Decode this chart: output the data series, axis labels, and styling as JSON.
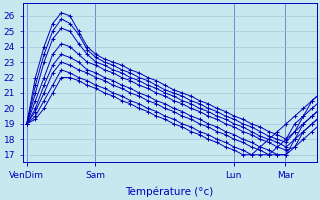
{
  "xlabel": "Température (°c)",
  "ylim": [
    16.5,
    26.8
  ],
  "yticks": [
    17,
    18,
    19,
    20,
    21,
    22,
    23,
    24,
    25,
    26
  ],
  "bg_color": "#c8e8f0",
  "grid_color": "#a0c8d8",
  "line_color": "#0000bb",
  "marker": "+",
  "day_labels": [
    "VenDim",
    "Sam",
    "Lun",
    "Mar"
  ],
  "day_positions": [
    0,
    33,
    100,
    125
  ],
  "xlim": [
    -2,
    140
  ],
  "series": [
    [
      19.0,
      22.0,
      24.0,
      25.5,
      26.2,
      26.0,
      25.0,
      24.0,
      23.5,
      23.2,
      23.0,
      22.8,
      22.5,
      22.3,
      22.0,
      21.8,
      21.5,
      21.2,
      21.0,
      20.8,
      20.5,
      20.3,
      20.0,
      19.8,
      19.5,
      19.3,
      19.0,
      18.8,
      18.5,
      18.3,
      18.0,
      18.5,
      19.0,
      19.5,
      20.0
    ],
    [
      19.0,
      21.5,
      23.5,
      25.0,
      25.8,
      25.5,
      24.8,
      23.8,
      23.3,
      23.0,
      22.8,
      22.5,
      22.3,
      22.0,
      21.8,
      21.5,
      21.2,
      21.0,
      20.8,
      20.5,
      20.3,
      20.0,
      19.8,
      19.5,
      19.3,
      19.0,
      18.8,
      18.5,
      18.2,
      18.0,
      17.8,
      18.5,
      19.5,
      20.5,
      21.0
    ],
    [
      19.0,
      21.0,
      23.0,
      24.5,
      25.2,
      25.0,
      24.2,
      23.5,
      23.0,
      22.8,
      22.5,
      22.3,
      22.0,
      21.8,
      21.5,
      21.3,
      21.0,
      20.8,
      20.5,
      20.3,
      20.0,
      19.8,
      19.5,
      19.3,
      19.0,
      18.8,
      18.5,
      18.2,
      18.0,
      17.8,
      17.5,
      18.0,
      18.5,
      19.0,
      19.5
    ],
    [
      19.0,
      20.5,
      22.0,
      23.5,
      24.2,
      24.0,
      23.5,
      23.0,
      22.8,
      22.5,
      22.3,
      22.0,
      21.8,
      21.5,
      21.3,
      21.0,
      20.8,
      20.5,
      20.3,
      20.0,
      19.8,
      19.5,
      19.3,
      19.0,
      18.8,
      18.5,
      18.3,
      18.0,
      17.8,
      17.5,
      17.3,
      17.5,
      18.0,
      18.5,
      19.0
    ],
    [
      19.0,
      20.0,
      21.5,
      22.8,
      23.5,
      23.3,
      23.0,
      22.5,
      22.3,
      22.0,
      21.8,
      21.5,
      21.3,
      21.0,
      20.8,
      20.5,
      20.3,
      20.0,
      19.8,
      19.5,
      19.3,
      19.0,
      18.8,
      18.5,
      18.3,
      18.0,
      17.8,
      17.5,
      17.3,
      17.0,
      17.0,
      17.5,
      18.5,
      19.0,
      19.5
    ],
    [
      19.0,
      19.8,
      21.0,
      22.3,
      23.0,
      22.8,
      22.5,
      22.3,
      22.0,
      21.8,
      21.5,
      21.3,
      21.0,
      20.8,
      20.5,
      20.3,
      20.0,
      19.8,
      19.5,
      19.3,
      19.0,
      18.8,
      18.5,
      18.3,
      18.0,
      17.8,
      17.5,
      17.3,
      17.0,
      17.0,
      17.0,
      18.0,
      19.0,
      19.5,
      20.0
    ],
    [
      19.0,
      19.5,
      20.5,
      21.5,
      22.5,
      22.3,
      22.0,
      21.8,
      21.5,
      21.3,
      21.0,
      20.8,
      20.5,
      20.3,
      20.0,
      19.8,
      19.5,
      19.3,
      19.0,
      18.8,
      18.5,
      18.3,
      18.0,
      17.8,
      17.5,
      17.3,
      17.0,
      17.0,
      17.0,
      17.5,
      18.0,
      19.0,
      19.5,
      20.0,
      20.5
    ],
    [
      19.0,
      19.3,
      20.0,
      21.0,
      22.0,
      22.0,
      21.8,
      21.5,
      21.3,
      21.0,
      20.8,
      20.5,
      20.3,
      20.0,
      19.8,
      19.5,
      19.3,
      19.0,
      18.8,
      18.5,
      18.3,
      18.0,
      17.8,
      17.5,
      17.3,
      17.0,
      17.0,
      17.5,
      18.0,
      18.5,
      19.0,
      19.5,
      20.0,
      20.5,
      21.0
    ]
  ],
  "vlines": [
    0,
    33,
    100,
    125
  ],
  "label_fontsize": 6.5,
  "xlabel_fontsize": 7.5,
  "ytick_fontsize": 6.5
}
